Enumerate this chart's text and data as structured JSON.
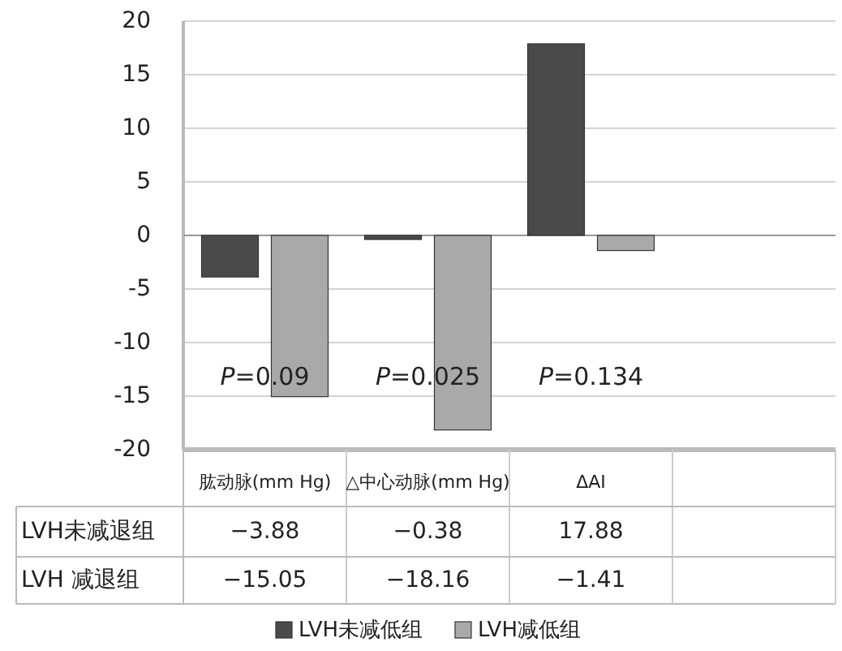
{
  "chart_data": {
    "type": "bar",
    "categories": [
      "肱动脉(mm Hg)",
      "△中心动脉(mm Hg)",
      "ΔAI",
      null
    ],
    "series": [
      {
        "name": "LVH未减低组",
        "color": "#4a4a4a",
        "values": [
          -3.88,
          -0.38,
          17.88,
          null
        ]
      },
      {
        "name": "LVH减低组",
        "color": "#a9a9a9",
        "values": [
          -15.05,
          -18.16,
          -1.41,
          null
        ]
      }
    ],
    "ylim": [
      -20,
      20
    ],
    "yticks": [
      -20,
      -15,
      -10,
      -5,
      0,
      5,
      10,
      15,
      20
    ],
    "grid": "y",
    "legend": "bottom",
    "data_labels": true,
    "annotations": [
      "LVH未减退组",
      "LVH 减退组",
      "*P*=0.09",
      "*P*=0.025",
      "*P*=0.134"
    ]
  }
}
